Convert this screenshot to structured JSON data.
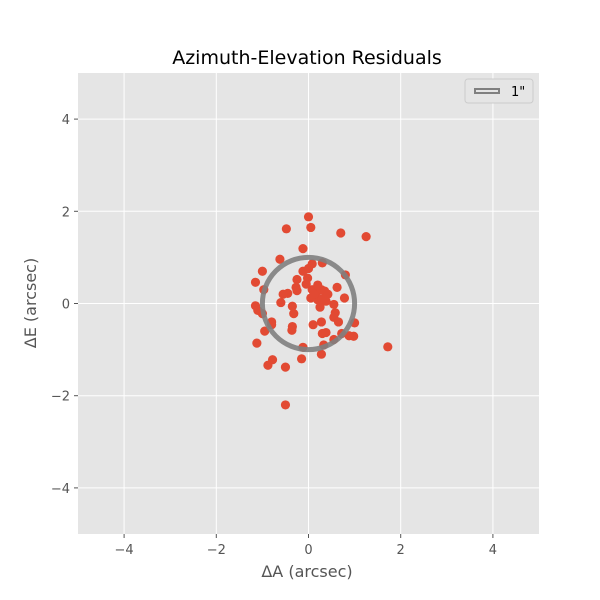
{
  "chart_data": {
    "type": "scatter",
    "title": "Azimuth-Elevation Residuals",
    "xlabel": "ΔA (arcsec)",
    "ylabel": "ΔE (arcsec)",
    "xlim": [
      -5,
      5
    ],
    "ylim": [
      -5,
      5
    ],
    "xticks": [
      -4,
      -2,
      0,
      2,
      4
    ],
    "yticks": [
      -4,
      -2,
      0,
      2,
      4
    ],
    "tick_labels_x": [
      "−4",
      "−2",
      "0",
      "2",
      "4"
    ],
    "tick_labels_y": [
      "−4",
      "−2",
      "0",
      "2",
      "4"
    ],
    "grid": true,
    "background_color": "#e5e5e5",
    "grid_color": "#ffffff",
    "point_color": "#e24a33",
    "circle": {
      "radius": 1,
      "color": "#808080",
      "label": "1\""
    },
    "legend": {
      "position": "top-right",
      "entries": [
        "1\""
      ]
    },
    "points": [
      [
        0.0,
        1.88
      ],
      [
        -0.48,
        1.62
      ],
      [
        0.05,
        1.65
      ],
      [
        0.7,
        1.53
      ],
      [
        1.25,
        1.45
      ],
      [
        -0.12,
        1.19
      ],
      [
        -0.12,
        0.7
      ],
      [
        0.0,
        0.76
      ],
      [
        0.08,
        0.86
      ],
      [
        0.3,
        0.88
      ],
      [
        -0.62,
        0.96
      ],
      [
        -1.0,
        0.7
      ],
      [
        -1.15,
        0.46
      ],
      [
        -0.25,
        0.52
      ],
      [
        -0.27,
        0.35
      ],
      [
        -0.02,
        0.55
      ],
      [
        0.08,
        0.3
      ],
      [
        0.18,
        0.25
      ],
      [
        0.28,
        0.3
      ],
      [
        0.35,
        0.27
      ],
      [
        0.05,
        0.12
      ],
      [
        0.2,
        0.08
      ],
      [
        0.38,
        0.05
      ],
      [
        0.62,
        0.35
      ],
      [
        0.78,
        0.12
      ],
      [
        0.8,
        0.62
      ],
      [
        -0.97,
        0.3
      ],
      [
        -1.15,
        -0.05
      ],
      [
        -0.45,
        0.22
      ],
      [
        -0.55,
        0.2
      ],
      [
        -0.6,
        0.02
      ],
      [
        -0.25,
        0.28
      ],
      [
        0.25,
        -0.08
      ],
      [
        0.55,
        -0.02
      ],
      [
        0.58,
        -0.2
      ],
      [
        0.55,
        -0.3
      ],
      [
        0.28,
        -0.4
      ],
      [
        0.65,
        -0.4
      ],
      [
        1.0,
        -0.42
      ],
      [
        0.1,
        -0.46
      ],
      [
        -0.32,
        -0.22
      ],
      [
        -0.35,
        -0.06
      ],
      [
        -1.0,
        -0.22
      ],
      [
        -1.1,
        -0.15
      ],
      [
        -0.8,
        -0.4
      ],
      [
        -0.8,
        -0.46
      ],
      [
        -0.95,
        -0.6
      ],
      [
        -0.35,
        -0.5
      ],
      [
        -0.36,
        -0.58
      ],
      [
        0.3,
        -0.65
      ],
      [
        0.38,
        -0.63
      ],
      [
        0.72,
        -0.65
      ],
      [
        0.88,
        -0.7
      ],
      [
        0.98,
        -0.71
      ],
      [
        0.55,
        -0.78
      ],
      [
        0.33,
        -0.9
      ],
      [
        0.28,
        -1.1
      ],
      [
        -0.12,
        -0.95
      ],
      [
        -1.12,
        -0.86
      ],
      [
        -0.78,
        -1.22
      ],
      [
        -0.15,
        -1.2
      ],
      [
        -0.88,
        -1.34
      ],
      [
        -0.5,
        -1.38
      ],
      [
        1.72,
        -0.94
      ],
      [
        -0.5,
        -2.2
      ],
      [
        0.3,
        0.1
      ],
      [
        0.12,
        0.2
      ],
      [
        0.42,
        0.2
      ],
      [
        -0.05,
        0.42
      ],
      [
        0.2,
        0.4
      ]
    ]
  }
}
